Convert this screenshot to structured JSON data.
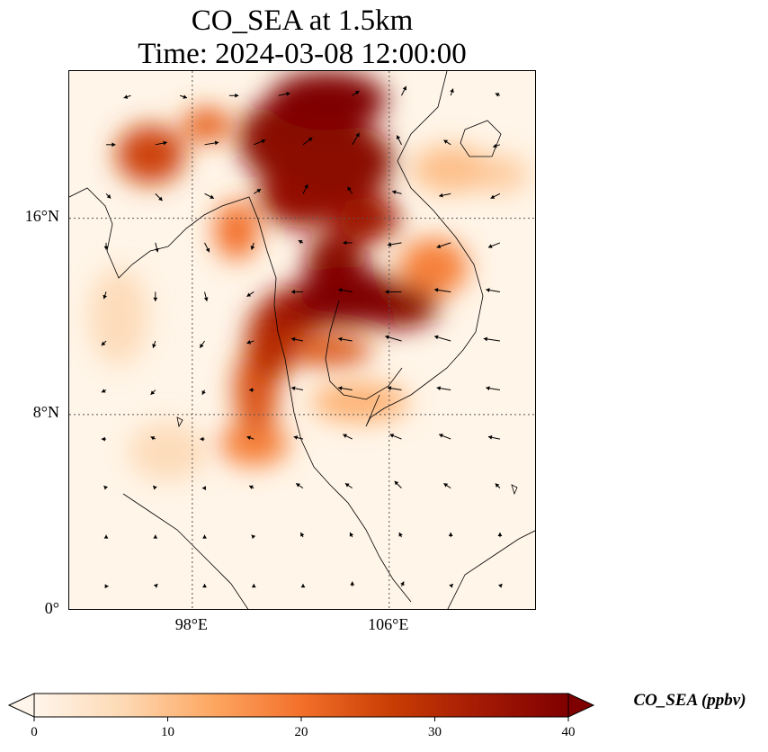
{
  "title": {
    "line1": "CO_SEA at 1.5km",
    "line2": "Time: 2024-03-08 12:00:00"
  },
  "map": {
    "lon_range": [
      93,
      112
    ],
    "lat_range": [
      0,
      22
    ],
    "lat_ticks": [
      {
        "value": 16,
        "label": "16°N"
      },
      {
        "value": 8,
        "label": "8°N"
      },
      {
        "value": 0,
        "label": "0°"
      }
    ],
    "lon_ticks": [
      {
        "value": 98,
        "label": "98°E"
      },
      {
        "value": 106,
        "label": "106°E"
      }
    ],
    "gridlines": "dotted",
    "plume_blobs_lonlat": [
      [
        103.5,
        20.8,
        2.4,
        1.2,
        1.0
      ],
      [
        101.5,
        19.2,
        1.6,
        1.6,
        0.95
      ],
      [
        104.0,
        18.3,
        2.2,
        1.6,
        0.95
      ],
      [
        102.5,
        17.0,
        1.8,
        1.4,
        0.9
      ],
      [
        105.0,
        16.0,
        1.4,
        1.0,
        0.85
      ],
      [
        103.8,
        14.2,
        1.2,
        1.2,
        0.95
      ],
      [
        104.3,
        12.8,
        2.2,
        1.2,
        1.0
      ],
      [
        106.2,
        12.4,
        1.8,
        0.9,
        0.95
      ],
      [
        102.2,
        12.2,
        1.4,
        1.0,
        0.85
      ],
      [
        101.2,
        11.0,
        1.0,
        1.6,
        0.75
      ],
      [
        100.6,
        9.0,
        0.9,
        1.8,
        0.6
      ],
      [
        103.5,
        10.6,
        1.8,
        0.6,
        0.6
      ],
      [
        100.5,
        6.8,
        1.4,
        0.9,
        0.45
      ],
      [
        96.3,
        18.6,
        1.4,
        1.2,
        0.65
      ],
      [
        98.6,
        19.8,
        1.0,
        0.7,
        0.55
      ],
      [
        99.8,
        15.5,
        0.9,
        1.2,
        0.5
      ],
      [
        107.8,
        14.0,
        1.4,
        1.2,
        0.45
      ],
      [
        104.8,
        8.5,
        2.0,
        0.8,
        0.3
      ],
      [
        108.5,
        18.0,
        1.6,
        1.0,
        0.25
      ],
      [
        110.5,
        17.8,
        1.2,
        0.8,
        0.2
      ],
      [
        95.0,
        12.0,
        1.2,
        2.0,
        0.15
      ],
      [
        97.0,
        6.5,
        1.6,
        1.2,
        0.15
      ]
    ],
    "wind_vectors_lonlat": [
      [
        95.5,
        21,
        -0.3,
        -0.1
      ],
      [
        97.5,
        21,
        0.3,
        -0.1
      ],
      [
        99.5,
        21,
        0.4,
        0
      ],
      [
        101.5,
        21,
        0.5,
        0.1
      ],
      [
        104.5,
        21,
        0.3,
        0.2
      ],
      [
        106.5,
        21,
        0.2,
        0.4
      ],
      [
        108.5,
        21,
        0.1,
        0.3
      ],
      [
        110.5,
        21,
        -0.2,
        0.1
      ],
      [
        94.5,
        19,
        0.4,
        0
      ],
      [
        96.5,
        19,
        0.5,
        0.1
      ],
      [
        98.5,
        19,
        0.6,
        0.1
      ],
      [
        100.5,
        19,
        0.5,
        0.2
      ],
      [
        102.5,
        19,
        0.4,
        0.3
      ],
      [
        104.5,
        19,
        0.3,
        0.5
      ],
      [
        106.5,
        19,
        -0.2,
        0.4
      ],
      [
        108.5,
        19,
        -0.3,
        0.2
      ],
      [
        110.5,
        19,
        -0.3,
        -0.1
      ],
      [
        94.5,
        17,
        0.2,
        -0.2
      ],
      [
        96.5,
        17,
        0.3,
        -0.3
      ],
      [
        98.5,
        17,
        0.4,
        -0.2
      ],
      [
        100.5,
        17,
        0.3,
        0.2
      ],
      [
        102.5,
        17,
        0.2,
        0.4
      ],
      [
        104.5,
        17,
        -0.2,
        0.3
      ],
      [
        106.5,
        17,
        -0.4,
        0.1
      ],
      [
        108.5,
        17,
        -0.5,
        -0.1
      ],
      [
        110.5,
        17,
        -0.4,
        -0.2
      ],
      [
        94.5,
        15,
        0,
        -0.3
      ],
      [
        96.5,
        15,
        0.1,
        -0.4
      ],
      [
        98.5,
        15,
        0.2,
        -0.4
      ],
      [
        100.5,
        15,
        -0.1,
        -0.3
      ],
      [
        102.5,
        15,
        -0.2,
        0.1
      ],
      [
        104.5,
        15,
        -0.4,
        0
      ],
      [
        106.5,
        15,
        -0.6,
        -0.1
      ],
      [
        108.5,
        15,
        -0.6,
        -0.2
      ],
      [
        110.5,
        15,
        -0.5,
        -0.2
      ],
      [
        94.5,
        13,
        -0.1,
        -0.3
      ],
      [
        96.5,
        13,
        0,
        -0.4
      ],
      [
        98.5,
        13,
        0.1,
        -0.4
      ],
      [
        100.5,
        13,
        -0.3,
        -0.2
      ],
      [
        102.5,
        13,
        -0.5,
        0
      ],
      [
        104.5,
        13,
        -0.6,
        0.1
      ],
      [
        106.5,
        13,
        -0.7,
        0
      ],
      [
        108.5,
        13,
        -0.7,
        0.1
      ],
      [
        110.5,
        13,
        -0.6,
        0.1
      ],
      [
        94.5,
        11,
        -0.2,
        -0.2
      ],
      [
        96.5,
        11,
        -0.1,
        -0.3
      ],
      [
        98.5,
        11,
        -0.2,
        -0.3
      ],
      [
        100.5,
        11,
        -0.3,
        -0.1
      ],
      [
        102.5,
        11,
        -0.5,
        0.1
      ],
      [
        104.5,
        11,
        -0.6,
        0.1
      ],
      [
        106.5,
        11,
        -0.7,
        0.2
      ],
      [
        108.5,
        11,
        -0.7,
        0.2
      ],
      [
        110.5,
        11,
        -0.7,
        0.1
      ],
      [
        94.5,
        9,
        -0.2,
        -0.1
      ],
      [
        96.5,
        9,
        -0.2,
        -0.2
      ],
      [
        98.5,
        9,
        -0.1,
        -0.2
      ],
      [
        100.5,
        9,
        -0.2,
        0
      ],
      [
        102.5,
        9,
        -0.5,
        0.1
      ],
      [
        104.5,
        9,
        -0.6,
        0.1
      ],
      [
        106.5,
        9,
        -0.6,
        0.1
      ],
      [
        108.5,
        9,
        -0.6,
        0.1
      ],
      [
        110.5,
        9,
        -0.6,
        0.1
      ],
      [
        94.5,
        7,
        -0.2,
        0
      ],
      [
        96.5,
        7,
        -0.2,
        0.1
      ],
      [
        98.5,
        7,
        -0.2,
        0
      ],
      [
        100.5,
        7,
        -0.3,
        0.1
      ],
      [
        102.5,
        7,
        -0.4,
        0.1
      ],
      [
        104.5,
        7,
        -0.4,
        0.2
      ],
      [
        106.5,
        7,
        -0.5,
        0.2
      ],
      [
        108.5,
        7,
        -0.5,
        0.2
      ],
      [
        110.5,
        7,
        -0.5,
        0.1
      ],
      [
        94.5,
        5,
        -0.1,
        0.1
      ],
      [
        96.5,
        5,
        -0.1,
        0.1
      ],
      [
        98.5,
        5,
        -0.1,
        0
      ],
      [
        100.5,
        5,
        -0.2,
        0.1
      ],
      [
        102.5,
        5,
        -0.3,
        0.2
      ],
      [
        104.5,
        5,
        -0.3,
        0.2
      ],
      [
        106.5,
        5,
        -0.3,
        0.3
      ],
      [
        108.5,
        5,
        -0.3,
        0.2
      ],
      [
        110.5,
        5,
        -0.2,
        0.2
      ],
      [
        94.5,
        3,
        0,
        0.1
      ],
      [
        96.5,
        3,
        0,
        0.1
      ],
      [
        98.5,
        3,
        0,
        0.1
      ],
      [
        100.5,
        3,
        -0.1,
        0.1
      ],
      [
        102.5,
        3,
        -0.1,
        0.2
      ],
      [
        104.5,
        3,
        -0.1,
        0.2
      ],
      [
        106.5,
        3,
        -0.1,
        0.2
      ],
      [
        108.5,
        3,
        0,
        0.2
      ],
      [
        110.5,
        3,
        0,
        0.2
      ],
      [
        94.5,
        1,
        0.1,
        0
      ],
      [
        96.5,
        1,
        0.1,
        0.1
      ],
      [
        98.5,
        1,
        0,
        0.1
      ],
      [
        100.5,
        1,
        0,
        0.1
      ],
      [
        102.5,
        1,
        0,
        0.1
      ],
      [
        104.5,
        1,
        0,
        0.2
      ],
      [
        106.5,
        1,
        0.1,
        0.2
      ],
      [
        108.5,
        1,
        0.1,
        0.1
      ],
      [
        110.5,
        1,
        0.1,
        0.1
      ]
    ]
  },
  "colorbar": {
    "label": "CO_SEA (ppbv)",
    "min": 0,
    "max": 40,
    "ticks": [
      {
        "value": 0,
        "label": "0"
      },
      {
        "value": 10,
        "label": "10"
      },
      {
        "value": 20,
        "label": "20"
      },
      {
        "value": 30,
        "label": "30"
      },
      {
        "value": 40,
        "label": "40"
      }
    ],
    "colormap": [
      "#fff5eb",
      "#fdd9b4",
      "#fda762",
      "#f3702a",
      "#c93e04",
      "#a41a04",
      "#7f0000"
    ],
    "extend": "both"
  },
  "colors": {
    "coastline": "#000000",
    "arrow": "#000000",
    "gridline": "#555555"
  }
}
